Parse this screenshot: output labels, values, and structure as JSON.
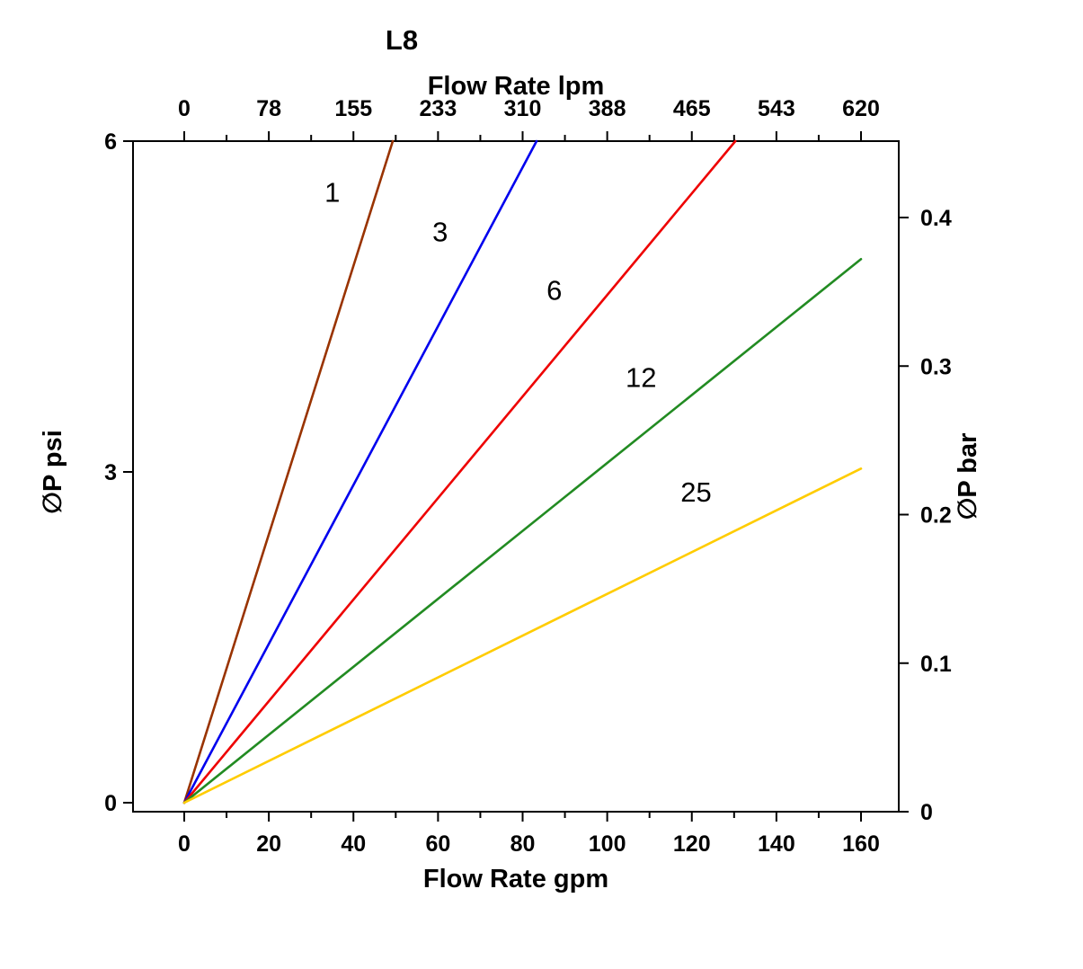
{
  "chart_data": {
    "type": "line",
    "title": "L8",
    "grid": false,
    "legend": "inline-labels",
    "axes": {
      "bottom": {
        "label": "Flow Rate gpm",
        "range": [
          0,
          160
        ],
        "ticks": [
          0,
          20,
          40,
          60,
          80,
          100,
          120,
          140,
          160
        ],
        "minor_tick_step": 10
      },
      "top": {
        "label": "Flow Rate lpm",
        "range": [
          0,
          620
        ],
        "ticks": [
          0,
          78,
          155,
          233,
          310,
          388,
          465,
          543,
          620
        ]
      },
      "left": {
        "label": "∅P psi",
        "range": [
          0,
          6
        ],
        "ticks": [
          0,
          3,
          6
        ]
      },
      "right": {
        "label": "∅P bar",
        "range": [
          0,
          0.452
        ],
        "ticks": [
          0,
          0.1,
          0.2,
          0.3,
          0.4
        ]
      }
    },
    "series": [
      {
        "name": "1",
        "color": "#993300",
        "points_gpm_psi": [
          [
            0,
            0
          ],
          [
            49.3,
            6
          ]
        ],
        "label": {
          "text": "1",
          "at_gpm_psi": [
            35,
            5.54
          ]
        }
      },
      {
        "name": "3",
        "color": "#0000ee",
        "points_gpm_psi": [
          [
            0,
            0
          ],
          [
            83.3,
            6
          ]
        ],
        "label": {
          "text": "3",
          "at_gpm_psi": [
            60.5,
            5.18
          ]
        }
      },
      {
        "name": "6",
        "color": "#ee0000",
        "points_gpm_psi": [
          [
            0,
            0
          ],
          [
            130.3,
            6
          ]
        ],
        "label": {
          "text": "6",
          "at_gpm_psi": [
            87.5,
            4.65
          ]
        }
      },
      {
        "name": "12",
        "color": "#228b22",
        "points_gpm_psi": [
          [
            0,
            0
          ],
          [
            160,
            4.93
          ]
        ],
        "label": {
          "text": "12",
          "at_gpm_psi": [
            108,
            3.86
          ]
        }
      },
      {
        "name": "25",
        "color": "#ffcc00",
        "points_gpm_psi": [
          [
            0,
            0
          ],
          [
            160,
            3.03
          ]
        ],
        "label": {
          "text": "25",
          "at_gpm_psi": [
            121,
            2.82
          ]
        }
      }
    ]
  }
}
